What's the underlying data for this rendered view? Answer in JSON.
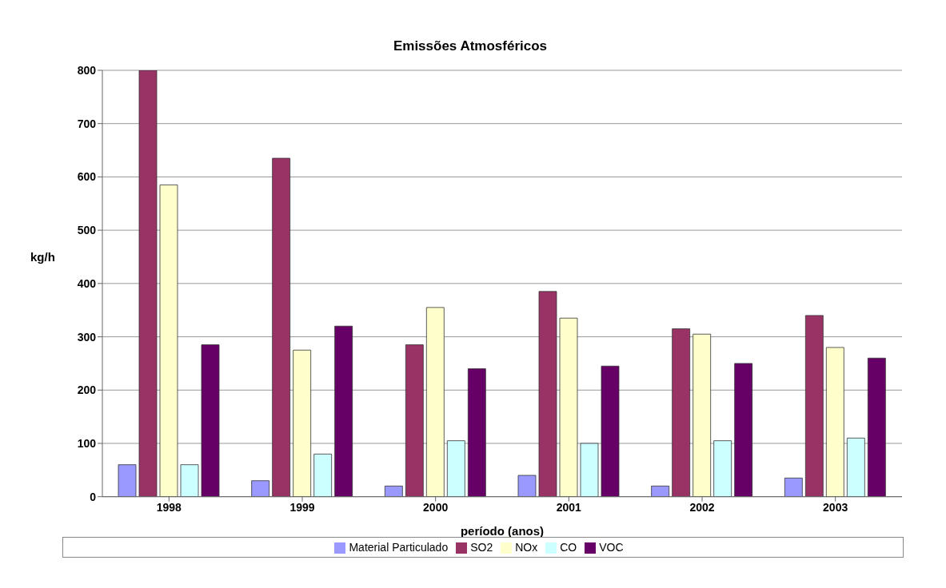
{
  "chart_data": {
    "type": "bar",
    "title": "Emissões Atmosféricos",
    "xlabel": "período (anos)",
    "ylabel": "kg/h",
    "categories": [
      "1998",
      "1999",
      "2000",
      "2001",
      "2002",
      "2003"
    ],
    "series": [
      {
        "name": "Material Particulado",
        "color": "#9999ff",
        "values": [
          60,
          30,
          20,
          40,
          20,
          35
        ]
      },
      {
        "name": "SO2",
        "color": "#993366",
        "values": [
          800,
          635,
          285,
          385,
          315,
          340
        ]
      },
      {
        "name": "NOx",
        "color": "#ffffcc",
        "values": [
          585,
          275,
          355,
          335,
          305,
          280
        ]
      },
      {
        "name": "CO",
        "color": "#ccffff",
        "values": [
          60,
          80,
          105,
          100,
          105,
          110
        ]
      },
      {
        "name": "VOC",
        "color": "#660066",
        "values": [
          285,
          320,
          240,
          245,
          250,
          260
        ]
      }
    ],
    "ylim": [
      0,
      800
    ],
    "yticks": [
      0,
      100,
      200,
      300,
      400,
      500,
      600,
      700,
      800
    ],
    "grid": "y",
    "legend": "bottom"
  }
}
